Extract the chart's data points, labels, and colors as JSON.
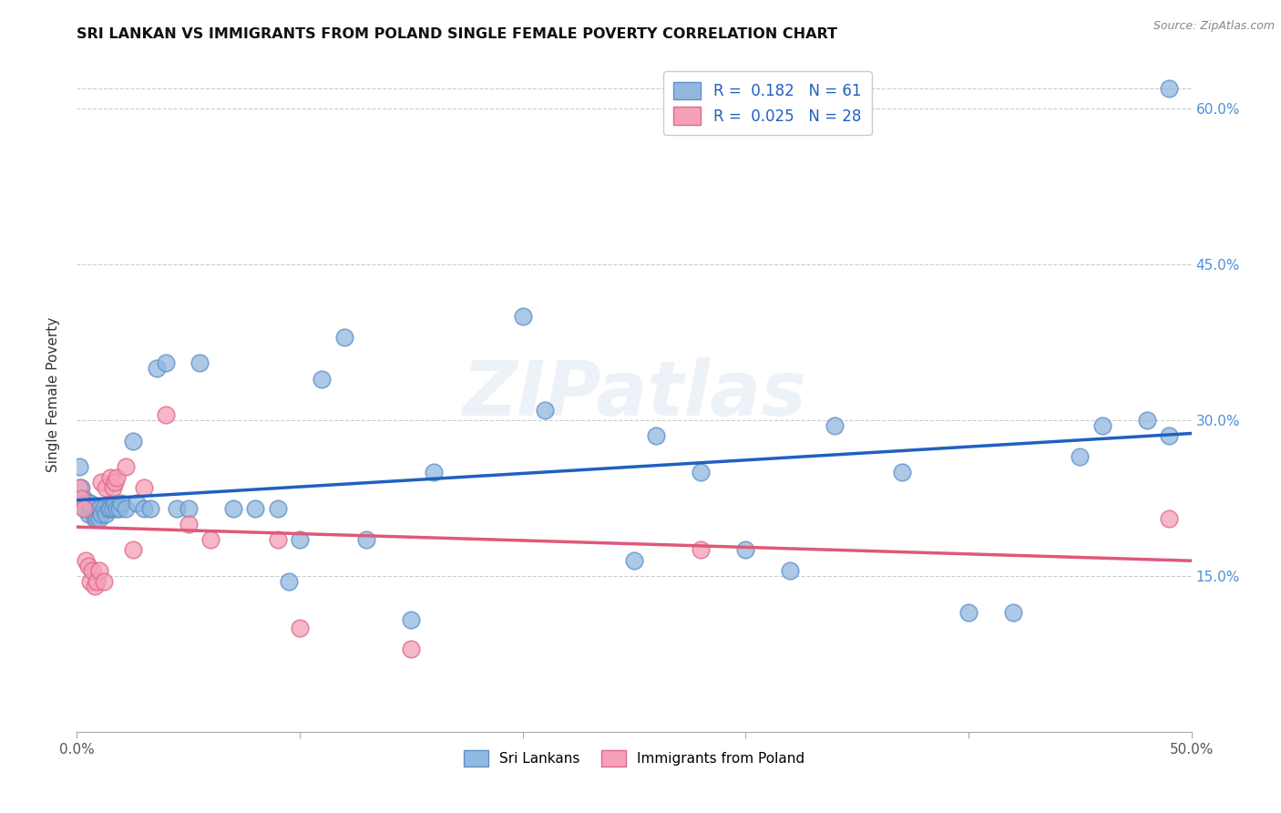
{
  "title": "SRI LANKAN VS IMMIGRANTS FROM POLAND SINGLE FEMALE POVERTY CORRELATION CHART",
  "source": "Source: ZipAtlas.com",
  "ylabel": "Single Female Poverty",
  "xmin": 0.0,
  "xmax": 0.5,
  "ymin": 0.0,
  "ymax": 0.65,
  "yticks": [
    0.15,
    0.3,
    0.45,
    0.6
  ],
  "ytick_labels": [
    "15.0%",
    "30.0%",
    "45.0%",
    "60.0%"
  ],
  "xticks": [
    0.0,
    0.1,
    0.2,
    0.3,
    0.4,
    0.5
  ],
  "sri_lankan_color": "#90b8e0",
  "poland_color": "#f4a0b8",
  "sri_lankan_edge": "#6090c8",
  "poland_edge": "#e06888",
  "sri_lankan_trend_color": "#2060c0",
  "poland_trend_color": "#e05878",
  "background_color": "#ffffff",
  "watermark": "ZIPatlas",
  "sri_lankans_x": [
    0.001,
    0.002,
    0.003,
    0.004,
    0.005,
    0.005,
    0.006,
    0.006,
    0.007,
    0.008,
    0.008,
    0.009,
    0.009,
    0.01,
    0.01,
    0.011,
    0.012,
    0.013,
    0.014,
    0.015,
    0.016,
    0.017,
    0.018,
    0.019,
    0.02,
    0.022,
    0.025,
    0.027,
    0.03,
    0.033,
    0.036,
    0.04,
    0.045,
    0.05,
    0.055,
    0.07,
    0.08,
    0.09,
    0.095,
    0.1,
    0.11,
    0.12,
    0.13,
    0.15,
    0.16,
    0.2,
    0.21,
    0.25,
    0.26,
    0.28,
    0.3,
    0.32,
    0.34,
    0.37,
    0.4,
    0.42,
    0.45,
    0.46,
    0.48,
    0.49,
    0.49
  ],
  "sri_lankans_y": [
    0.255,
    0.235,
    0.225,
    0.215,
    0.21,
    0.22,
    0.22,
    0.215,
    0.215,
    0.21,
    0.205,
    0.21,
    0.205,
    0.215,
    0.205,
    0.21,
    0.215,
    0.21,
    0.215,
    0.215,
    0.215,
    0.22,
    0.215,
    0.215,
    0.22,
    0.215,
    0.28,
    0.22,
    0.215,
    0.215,
    0.35,
    0.355,
    0.215,
    0.215,
    0.355,
    0.215,
    0.215,
    0.215,
    0.145,
    0.185,
    0.34,
    0.38,
    0.185,
    0.108,
    0.25,
    0.4,
    0.31,
    0.165,
    0.285,
    0.25,
    0.175,
    0.155,
    0.295,
    0.25,
    0.115,
    0.115,
    0.265,
    0.295,
    0.3,
    0.285,
    0.62
  ],
  "poland_x": [
    0.001,
    0.002,
    0.003,
    0.004,
    0.005,
    0.006,
    0.007,
    0.008,
    0.009,
    0.01,
    0.011,
    0.012,
    0.013,
    0.015,
    0.016,
    0.017,
    0.018,
    0.022,
    0.025,
    0.03,
    0.04,
    0.05,
    0.06,
    0.09,
    0.1,
    0.15,
    0.28,
    0.49
  ],
  "poland_y": [
    0.235,
    0.225,
    0.215,
    0.165,
    0.16,
    0.145,
    0.155,
    0.14,
    0.145,
    0.155,
    0.24,
    0.145,
    0.235,
    0.245,
    0.235,
    0.24,
    0.245,
    0.255,
    0.175,
    0.235,
    0.305,
    0.2,
    0.185,
    0.185,
    0.1,
    0.08,
    0.175,
    0.205
  ]
}
